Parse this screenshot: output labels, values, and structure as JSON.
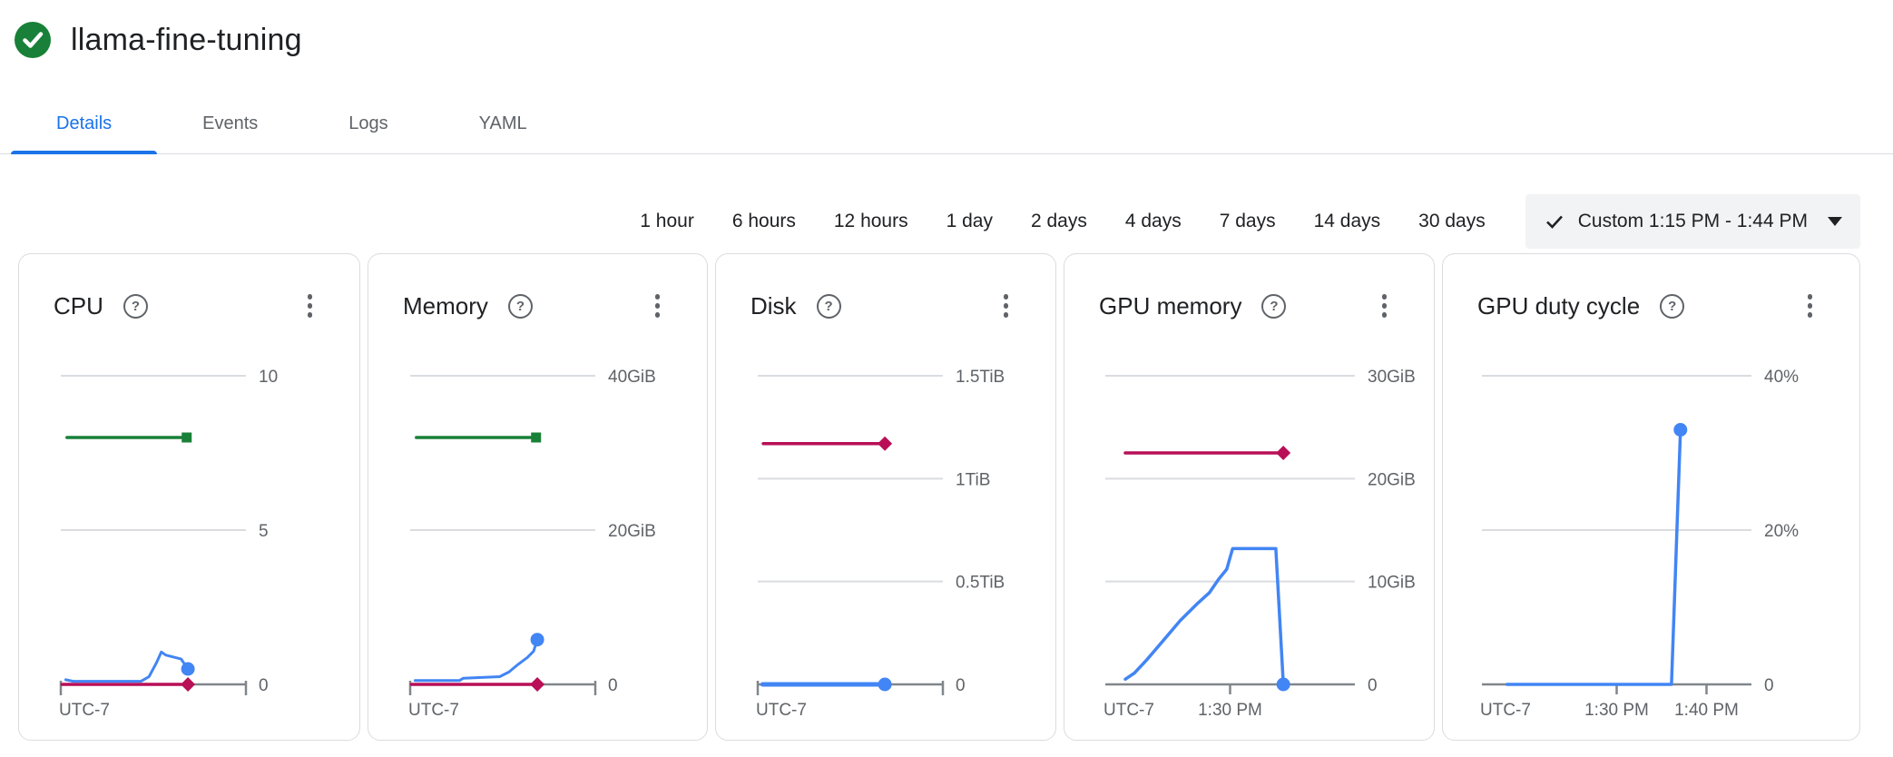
{
  "header": {
    "title": "llama-fine-tuning",
    "status_icon": "check-circle",
    "status_color": "#188038"
  },
  "tabs": [
    {
      "label": "Details",
      "active": true
    },
    {
      "label": "Events",
      "active": false
    },
    {
      "label": "Logs",
      "active": false
    },
    {
      "label": "YAML",
      "active": false
    }
  ],
  "time_range": {
    "options": [
      "1 hour",
      "6 hours",
      "12 hours",
      "1 day",
      "2 days",
      "4 days",
      "7 days",
      "14 days",
      "30 days"
    ],
    "custom_label": "Custom 1:15 PM - 1:44 PM",
    "custom_selected": true,
    "icons": {
      "selected": "checkmark",
      "dropdown": "caret-down"
    }
  },
  "card_icons": {
    "help": "question-mark-circle",
    "menu": "vertical-ellipsis"
  },
  "colors": {
    "accent_blue": "#1a73e8",
    "chart_blue": "#4285f4",
    "chart_green": "#188038",
    "chart_magenta": "#b80f57",
    "gridline": "#dadce0",
    "axis": "#80868b",
    "label_gray": "#5f6368",
    "custom_button_bg": "#f1f3f4"
  },
  "chart_data": [
    {
      "type": "line",
      "title": "CPU",
      "ymax": 10,
      "gridlines": [
        {
          "label": "10",
          "value": 10
        },
        {
          "label": "5",
          "value": 5
        }
      ],
      "zero_label": "0",
      "x_axis": {
        "style": "bracket",
        "timezone_label": "UTC-7",
        "range_minutes": [
          0,
          30
        ],
        "ticks": []
      },
      "series": [
        {
          "name": "green-flat-line",
          "color": "#188038",
          "width": 3.5,
          "marker": "square",
          "points": [
            [
              1,
              8
            ],
            [
              20.4,
              8
            ]
          ]
        },
        {
          "name": "magenta-flat-line",
          "color": "#b80f57",
          "width": 3.5,
          "marker": "diamond",
          "points": [
            [
              0.2,
              0
            ],
            [
              20.6,
              0
            ]
          ]
        },
        {
          "name": "blue-usage-line",
          "color": "#4285f4",
          "width": 3,
          "marker": "circle",
          "points": [
            [
              0.8,
              0.15
            ],
            [
              2,
              0.1
            ],
            [
              13,
              0.1
            ],
            [
              14.3,
              0.25
            ],
            [
              15.5,
              0.7
            ],
            [
              16.3,
              1.05
            ],
            [
              17,
              0.95
            ],
            [
              18,
              0.9
            ],
            [
              19.5,
              0.82
            ],
            [
              20.6,
              0.5
            ]
          ]
        }
      ]
    },
    {
      "type": "line",
      "title": "Memory",
      "ymax": 40,
      "gridlines": [
        {
          "label": "40GiB",
          "value": 40
        },
        {
          "label": "20GiB",
          "value": 20
        }
      ],
      "zero_label": "0",
      "x_axis": {
        "style": "bracket",
        "timezone_label": "UTC-7",
        "range_minutes": [
          0,
          30
        ],
        "ticks": []
      },
      "series": [
        {
          "name": "green-flat-line",
          "color": "#188038",
          "width": 3.5,
          "marker": "square",
          "points": [
            [
              1,
              32
            ],
            [
              20.4,
              32
            ]
          ]
        },
        {
          "name": "magenta-flat-line",
          "color": "#b80f57",
          "width": 3.5,
          "marker": "diamond",
          "points": [
            [
              0.2,
              0
            ],
            [
              20.6,
              0
            ]
          ]
        },
        {
          "name": "blue-usage-line",
          "color": "#4285f4",
          "width": 3,
          "marker": "circle",
          "points": [
            [
              0.8,
              0.5
            ],
            [
              8,
              0.5
            ],
            [
              8.6,
              0.8
            ],
            [
              14.5,
              1.0
            ],
            [
              16,
              1.6
            ],
            [
              17.5,
              2.6
            ],
            [
              19,
              3.5
            ],
            [
              20,
              4.3
            ],
            [
              20.6,
              5.8
            ]
          ]
        }
      ]
    },
    {
      "type": "line",
      "title": "Disk",
      "ymax": 1.5,
      "gridlines": [
        {
          "label": "1.5TiB",
          "value": 1.5
        },
        {
          "label": "1TiB",
          "value": 1.0
        },
        {
          "label": "0.5TiB",
          "value": 0.5
        }
      ],
      "zero_label": "0",
      "x_axis": {
        "style": "bracket",
        "timezone_label": "UTC-7",
        "range_minutes": [
          0,
          30
        ],
        "ticks": []
      },
      "series": [
        {
          "name": "magenta-flat-line",
          "color": "#b80f57",
          "width": 3.5,
          "marker": "diamond",
          "points": [
            [
              0.9,
              1.17
            ],
            [
              20.6,
              1.17
            ]
          ]
        },
        {
          "name": "blue-usage-line",
          "color": "#4285f4",
          "width": 5,
          "marker": "circle",
          "points": [
            [
              0.8,
              0
            ],
            [
              20.6,
              0
            ]
          ]
        }
      ]
    },
    {
      "type": "line",
      "title": "GPU memory",
      "ymax": 30,
      "gridlines": [
        {
          "label": "30GiB",
          "value": 30
        },
        {
          "label": "20GiB",
          "value": 20
        },
        {
          "label": "10GiB",
          "value": 10
        }
      ],
      "zero_label": "0",
      "x_axis": {
        "style": "ticks",
        "timezone_label": "UTC-7",
        "range_minutes": [
          0,
          30
        ],
        "ticks": [
          {
            "label": "1:30 PM",
            "t": 15
          }
        ]
      },
      "series": [
        {
          "name": "magenta-flat-line",
          "color": "#b80f57",
          "width": 3.5,
          "marker": "diamond",
          "points": [
            [
              2.4,
              22.5
            ],
            [
              21.4,
              22.5
            ]
          ]
        },
        {
          "name": "blue-usage-line",
          "color": "#4285f4",
          "width": 3.5,
          "marker": "circle",
          "points": [
            [
              2.4,
              0.5
            ],
            [
              3.5,
              1.1
            ],
            [
              5,
              2.4
            ],
            [
              7,
              4.3
            ],
            [
              9,
              6.2
            ],
            [
              11,
              7.8
            ],
            [
              12.5,
              8.9
            ],
            [
              13.6,
              10.2
            ],
            [
              14.6,
              11.2
            ],
            [
              15.3,
              13.2
            ],
            [
              20.5,
              13.2
            ],
            [
              21.4,
              0
            ]
          ]
        }
      ]
    },
    {
      "type": "line",
      "title": "GPU duty cycle",
      "ymax": 40,
      "gridlines": [
        {
          "label": "40%",
          "value": 40
        },
        {
          "label": "20%",
          "value": 20
        }
      ],
      "zero_label": "0",
      "x_axis": {
        "style": "ticks",
        "timezone_label": "UTC-7",
        "range_minutes": [
          0,
          30
        ],
        "ticks": [
          {
            "label": "1:30 PM",
            "t": 15
          },
          {
            "label": "1:40 PM",
            "t": 25
          }
        ]
      },
      "series": [
        {
          "name": "blue-usage-line",
          "color": "#4285f4",
          "width": 3.5,
          "marker": "circle",
          "points": [
            [
              2.8,
              0
            ],
            [
              21.1,
              0
            ],
            [
              22.1,
              33
            ]
          ]
        }
      ]
    }
  ]
}
